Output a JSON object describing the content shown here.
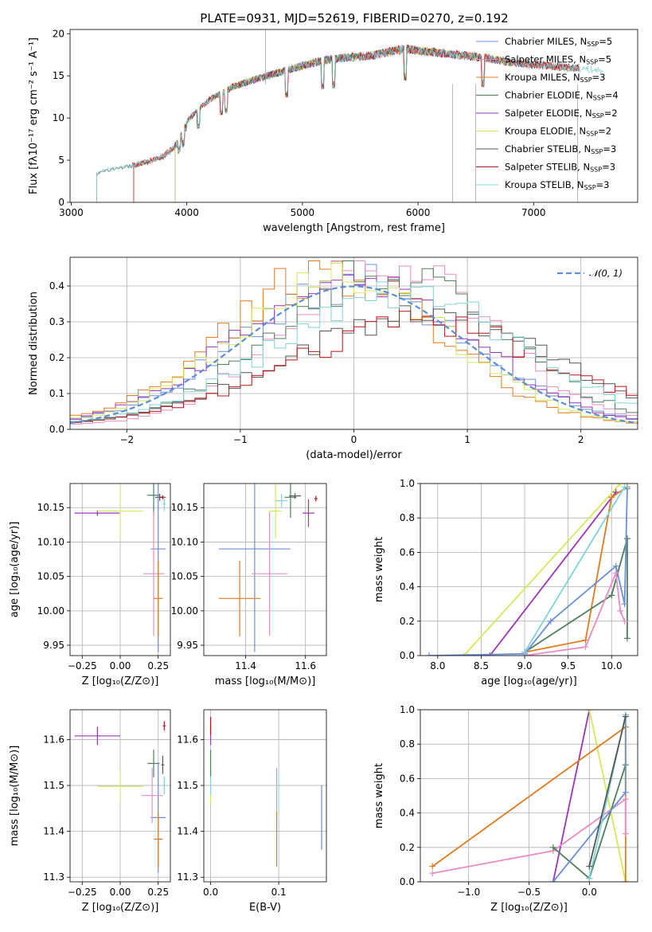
{
  "figure_title": "PLATE=0931, MJD=52619, FIBERID=0270, z=0.192",
  "colors": {
    "chabrier_miles": "#6a8fd8",
    "salpeter_miles": "#e98bc4",
    "kroupa_miles": "#e07b20",
    "chabrier_elodie": "#4f7f5a",
    "salpeter_elodie": "#9a35b5",
    "kroupa_elodie": "#d4e85a",
    "chabrier_stelib": "#555555",
    "salpeter_stelib": "#b81515",
    "kroupa_stelib": "#7fd3d8",
    "normal": "#5b8ed6"
  },
  "chart_data": [
    {
      "id": "spectrum",
      "type": "line",
      "xlabel": "wavelength [Angstrom, rest frame]",
      "ylabel": "Flux [fλ10⁻¹⁷ erg cm⁻² s⁻¹ A⁻¹]",
      "xlim": [
        2990,
        7900
      ],
      "ylim": [
        0,
        20.5
      ],
      "xticks": [
        "3000",
        "4000",
        "5000",
        "6000",
        "7000"
      ],
      "yticks": [
        "0",
        "5",
        "10",
        "15",
        "20"
      ],
      "legend_position": "top-right",
      "series": [
        {
          "name": "Chabrier MILES, N",
          "sub": "SSP",
          "suffix": "=5",
          "color_key": "chabrier_miles",
          "xmin": 3540,
          "xmax": 7400
        },
        {
          "name": "Salpeter MILES, N",
          "sub": "SSP",
          "suffix": "=5",
          "color_key": "salpeter_miles",
          "xmin": 3540,
          "xmax": 7400
        },
        {
          "name": "Kroupa MILES, N",
          "sub": "SSP",
          "suffix": "=3",
          "color_key": "kroupa_miles",
          "xmin": 3540,
          "xmax": 7400
        },
        {
          "name": "Chabrier ELODIE, N",
          "sub": "SSP",
          "suffix": "=4",
          "color_key": "chabrier_elodie",
          "xmin": 3900,
          "xmax": 6800
        },
        {
          "name": "Salpeter ELODIE, N",
          "sub": "SSP",
          "suffix": "=2",
          "color_key": "salpeter_elodie",
          "xmin": 3900,
          "xmax": 6800
        },
        {
          "name": "Kroupa ELODIE, N",
          "sub": "SSP",
          "suffix": "=2",
          "color_key": "kroupa_elodie",
          "xmin": 3900,
          "xmax": 6800
        },
        {
          "name": "Chabrier STELIB, N",
          "sub": "SSP",
          "suffix": "=3",
          "color_key": "chabrier_stelib",
          "xmin": 3220,
          "xmax": 7400
        },
        {
          "name": "Salpeter STELIB, N",
          "sub": "SSP",
          "suffix": "=3",
          "color_key": "salpeter_stelib",
          "xmin": 3540,
          "xmax": 7400
        },
        {
          "name": "Kroupa STELIB, N",
          "sub": "SSP",
          "suffix": "=3",
          "color_key": "kroupa_stelib",
          "xmin": 3220,
          "xmax": 7600
        }
      ],
      "continuum": {
        "x": [
          3220,
          3300,
          3500,
          3700,
          3800,
          3900,
          3950,
          4000,
          4100,
          4200,
          4400,
          4600,
          4800,
          5000,
          5200,
          5400,
          5600,
          5800,
          5900,
          6000,
          6200,
          6400,
          6600,
          6800,
          7000,
          7200,
          7400,
          7600
        ],
        "y": [
          3.6,
          4.0,
          4.5,
          5.2,
          5.8,
          7.0,
          8.5,
          9.6,
          11.0,
          12.2,
          13.7,
          14.6,
          15.4,
          16.2,
          16.9,
          17.2,
          17.4,
          18.0,
          18.2,
          18.0,
          17.7,
          17.4,
          17.1,
          16.6,
          16.3,
          16.1,
          15.9,
          15.6
        ]
      }
    },
    {
      "id": "residuals",
      "type": "area",
      "xlabel": "(data-model)/error",
      "ylabel": "Normed distribution",
      "xlim": [
        -2.5,
        2.5
      ],
      "ylim": [
        0,
        0.48
      ],
      "xticks": [
        "−2",
        "−1",
        "0",
        "1",
        "2"
      ],
      "yticks": [
        "0.0",
        "0.1",
        "0.2",
        "0.3",
        "0.4"
      ],
      "legend_position": "top-right",
      "legend_label": "𝒩(0, 1)",
      "bin_width": 0.1,
      "bin_start": -2.5,
      "histograms": [
        {
          "color_key": "chabrier_miles",
          "center": 0.0,
          "sigma": 1.0,
          "scale": 1.0
        },
        {
          "color_key": "kroupa_miles",
          "center": -0.2,
          "sigma": 0.95,
          "scale": 1.02
        },
        {
          "color_key": "salpeter_miles",
          "center": 0.3,
          "sigma": 0.9,
          "scale": 1.05
        },
        {
          "color_key": "chabrier_elodie",
          "center": 0.3,
          "sigma": 1.0,
          "scale": 1.08
        },
        {
          "color_key": "salpeter_elodie",
          "center": 0.0,
          "sigma": 1.0,
          "scale": 1.05
        },
        {
          "color_key": "kroupa_elodie",
          "center": -0.1,
          "sigma": 0.95,
          "scale": 1.0
        },
        {
          "color_key": "chabrier_stelib",
          "center": 0.6,
          "sigma": 1.2,
          "scale": 0.9
        },
        {
          "color_key": "salpeter_stelib",
          "center": 0.6,
          "sigma": 1.2,
          "scale": 0.85
        },
        {
          "color_key": "kroupa_stelib",
          "center": 0.4,
          "sigma": 1.1,
          "scale": 1.0
        }
      ],
      "normal": {
        "mean": 0,
        "sigma": 1,
        "color_key": "normal"
      }
    },
    {
      "id": "age-vs-Z",
      "type": "scatter",
      "xlabel": "Z [log₁₀(Z/Z⊙)]",
      "ylabel": "age  [log₁₀(age/yr)]",
      "xlim": [
        -0.33,
        0.33
      ],
      "ylim": [
        9.935,
        10.185
      ],
      "xticks": [
        -0.25,
        0.0,
        0.25
      ],
      "xticklabels": [
        "−0.25",
        "0.00",
        "0.25"
      ],
      "yticks": [
        9.95,
        10.0,
        10.05,
        10.1,
        10.15
      ],
      "yticklabels": [
        "9.95",
        "10.00",
        "10.05",
        "10.10",
        "10.15"
      ],
      "points": [
        {
          "color_key": "salpeter_elodie",
          "x": -0.15,
          "xerr": 0.15,
          "y": 10.142,
          "yerr": 0.004
        },
        {
          "color_key": "kroupa_elodie",
          "x": 0.0,
          "xerr": 0.15,
          "y": 10.145,
          "yerr": 0.04
        },
        {
          "color_key": "chabrier_elodie",
          "x": 0.22,
          "xerr": 0.04,
          "y": 10.168,
          "yerr": 0.03
        },
        {
          "color_key": "chabrier_stelib",
          "x": 0.26,
          "xerr": 0.03,
          "y": 10.165,
          "yerr": 0.005
        },
        {
          "color_key": "salpeter_stelib",
          "x": 0.28,
          "xerr": 0.02,
          "y": 10.165,
          "yerr": 0.003
        },
        {
          "color_key": "kroupa_stelib",
          "x": 0.29,
          "xerr": 0.01,
          "y": 10.155,
          "yerr": 0.01
        },
        {
          "color_key": "chabrier_miles",
          "x": 0.25,
          "xerr": 0.05,
          "y": 10.09,
          "yerr": 0.15
        },
        {
          "color_key": "salpeter_miles",
          "x": 0.22,
          "xerr": 0.07,
          "y": 10.054,
          "yerr": 0.09
        },
        {
          "color_key": "kroupa_miles",
          "x": 0.25,
          "xerr": 0.03,
          "y": 10.018,
          "yerr": 0.055
        }
      ]
    },
    {
      "id": "age-vs-mass",
      "type": "scatter",
      "xlabel": "mass [log₁₀(M/M⊙)]",
      "ylabel": "",
      "xlim": [
        11.26,
        11.67
      ],
      "ylim": [
        9.935,
        10.185
      ],
      "xticks": [
        11.4,
        11.6
      ],
      "xticklabels": [
        "11.4",
        "11.6"
      ],
      "yticks": [
        9.95,
        10.0,
        10.05,
        10.1,
        10.15
      ],
      "yticklabels": [
        "9.95",
        "10.00",
        "10.05",
        "10.10",
        "10.15"
      ],
      "points": [
        {
          "color_key": "salpeter_elodie",
          "x": 11.61,
          "xerr": 0.02,
          "y": 10.142,
          "yerr": 0.02
        },
        {
          "color_key": "kroupa_elodie",
          "x": 11.5,
          "xerr": 0.02,
          "y": 10.145,
          "yerr": 0.04
        },
        {
          "color_key": "chabrier_elodie",
          "x": 11.55,
          "xerr": 0.02,
          "y": 10.165,
          "yerr": 0.03
        },
        {
          "color_key": "chabrier_stelib",
          "x": 11.565,
          "xerr": 0.02,
          "y": 10.167,
          "yerr": 0.004
        },
        {
          "color_key": "salpeter_stelib",
          "x": 11.635,
          "xerr": 0.005,
          "y": 10.163,
          "yerr": 0.004
        },
        {
          "color_key": "kroupa_stelib",
          "x": 11.52,
          "xerr": 0.02,
          "y": 10.16,
          "yerr": 0.01
        },
        {
          "color_key": "chabrier_miles",
          "x": 11.43,
          "xerr": 0.12,
          "y": 10.09,
          "yerr": 0.15
        },
        {
          "color_key": "salpeter_miles",
          "x": 11.48,
          "xerr": 0.06,
          "y": 10.054,
          "yerr": 0.09
        },
        {
          "color_key": "kroupa_miles",
          "x": 11.38,
          "xerr": 0.07,
          "y": 10.018,
          "yerr": 0.055
        }
      ]
    },
    {
      "id": "weight-vs-age",
      "type": "line",
      "xlabel": "age  [log₁₀(age/yr)]",
      "ylabel": "mass weight",
      "xlim": [
        7.8,
        10.3
      ],
      "ylim": [
        0,
        1
      ],
      "xticks": [
        8.0,
        8.5,
        9.0,
        9.5,
        10.0
      ],
      "xticklabels": [
        "8.0",
        "8.5",
        "9.0",
        "9.5",
        "10.0"
      ],
      "yticks": [
        0,
        0.2,
        0.4,
        0.6,
        0.8,
        1.0
      ],
      "yticklabels": [
        "0.0",
        "0.2",
        "0.4",
        "0.6",
        "0.8",
        "1.0"
      ],
      "series": [
        {
          "color_key": "kroupa_elodie",
          "x": [
            8.3,
            10.1
          ],
          "y": [
            0.0,
            1.0
          ]
        },
        {
          "color_key": "salpeter_elodie",
          "x": [
            8.6,
            10.05
          ],
          "y": [
            0.0,
            0.95
          ]
        },
        {
          "color_key": "kroupa_miles",
          "x": [
            9.0,
            9.7,
            10.0,
            10.18
          ],
          "y": [
            0.02,
            0.09,
            0.92,
            0.98
          ]
        },
        {
          "color_key": "chabrier_elodie",
          "x": [
            9.0,
            10.0,
            10.18,
            10.18
          ],
          "y": [
            0.02,
            0.35,
            0.68,
            0.1
          ]
        },
        {
          "color_key": "chabrier_miles",
          "x": [
            7.9,
            9.0,
            9.3,
            10.05,
            10.15,
            10.18
          ],
          "y": [
            0.0,
            0.01,
            0.2,
            0.52,
            0.3,
            0.97
          ]
        },
        {
          "color_key": "salpeter_miles",
          "x": [
            9.0,
            9.7,
            10.05,
            10.1,
            10.15
          ],
          "y": [
            0.0,
            0.05,
            0.48,
            0.26,
            0.2
          ]
        },
        {
          "color_key": "kroupa_stelib",
          "x": [
            9.0,
            10.15
          ],
          "y": [
            0.02,
            0.98
          ]
        }
      ]
    },
    {
      "id": "mass-vs-Z",
      "type": "scatter",
      "xlabel": "Z [log₁₀(Z/Z⊙)]",
      "ylabel": "mass [log₁₀(M/M⊙)]",
      "xlim": [
        -0.33,
        0.33
      ],
      "ylim": [
        11.29,
        11.665
      ],
      "xticks": [
        -0.25,
        0.0,
        0.25
      ],
      "xticklabels": [
        "−0.25",
        "0.00",
        "0.25"
      ],
      "yticks": [
        11.3,
        11.4,
        11.5,
        11.6
      ],
      "yticklabels": [
        "11.3",
        "11.4",
        "11.5",
        "11.6"
      ],
      "points": [
        {
          "color_key": "salpeter_elodie",
          "x": -0.15,
          "xerr": 0.15,
          "y": 11.608,
          "yerr": 0.02
        },
        {
          "color_key": "kroupa_elodie",
          "x": 0.0,
          "xerr": 0.15,
          "y": 11.498,
          "yerr": 0.035
        },
        {
          "color_key": "chabrier_elodie",
          "x": 0.22,
          "xerr": 0.04,
          "y": 11.548,
          "yerr": 0.03
        },
        {
          "color_key": "chabrier_stelib",
          "x": 0.28,
          "xerr": 0.01,
          "y": 11.545,
          "yerr": 0.02
        },
        {
          "color_key": "salpeter_stelib",
          "x": 0.29,
          "xerr": 0.01,
          "y": 11.63,
          "yerr": 0.01
        },
        {
          "color_key": "kroupa_stelib",
          "x": 0.29,
          "xerr": 0.01,
          "y": 11.5,
          "yerr": 0.02
        },
        {
          "color_key": "chabrier_miles",
          "x": 0.25,
          "xerr": 0.05,
          "y": 11.43,
          "yerr": 0.12
        },
        {
          "color_key": "salpeter_miles",
          "x": 0.21,
          "xerr": 0.07,
          "y": 11.478,
          "yerr": 0.06
        },
        {
          "color_key": "kroupa_miles",
          "x": 0.25,
          "xerr": 0.03,
          "y": 11.383,
          "yerr": 0.06
        }
      ]
    },
    {
      "id": "mass-vs-EBV",
      "type": "scatter",
      "xlabel": "E(B-V)",
      "ylabel": "",
      "xlim": [
        -0.01,
        0.17
      ],
      "ylim": [
        11.29,
        11.665
      ],
      "xticks": [
        0.0,
        0.1
      ],
      "xticklabels": [
        "0.0",
        "0.1"
      ],
      "yticks": [
        11.3,
        11.4,
        11.5,
        11.6
      ],
      "yticklabels": [
        "11.3",
        "11.4",
        "11.5",
        "11.6"
      ],
      "points": [
        {
          "color_key": "salpeter_elodie",
          "x": 0.0,
          "xerr": 0.0,
          "y": 11.608,
          "yerr": 0.02
        },
        {
          "color_key": "kroupa_elodie",
          "x": 0.0,
          "xerr": 0.0,
          "y": 11.495,
          "yerr": 0.035
        },
        {
          "color_key": "chabrier_elodie",
          "x": 0.0,
          "xerr": 0.0,
          "y": 11.548,
          "yerr": 0.03
        },
        {
          "color_key": "salpeter_stelib",
          "x": 0.0,
          "xerr": 0.0,
          "y": 11.63,
          "yerr": 0.02
        },
        {
          "color_key": "kroupa_stelib",
          "x": 0.0,
          "xerr": 0.0,
          "y": 11.5,
          "yerr": 0.02
        },
        {
          "color_key": "salpeter_miles",
          "x": 0.097,
          "xerr": 0.0,
          "y": 11.478,
          "yerr": 0.06
        },
        {
          "color_key": "kroupa_miles",
          "x": 0.097,
          "xerr": 0.0,
          "y": 11.383,
          "yerr": 0.06
        },
        {
          "color_key": "chabrier_miles",
          "x": 0.163,
          "xerr": 0.0,
          "y": 11.43,
          "yerr": 0.07
        }
      ]
    },
    {
      "id": "weight-vs-Z",
      "type": "line",
      "xlabel": "Z [log₁₀(Z/Z⊙)]",
      "ylabel": "mass weight",
      "xlim": [
        -1.4,
        0.4
      ],
      "ylim": [
        0,
        1
      ],
      "xticks": [
        -1.0,
        -0.5,
        0.0
      ],
      "xticklabels": [
        "−1.0",
        "−0.5",
        "0.0"
      ],
      "yticks": [
        0,
        0.2,
        0.4,
        0.6,
        0.8,
        1.0
      ],
      "yticklabels": [
        "0.0",
        "0.2",
        "0.4",
        "0.6",
        "0.8",
        "1.0"
      ],
      "series": [
        {
          "color_key": "salpeter_elodie",
          "x": [
            -0.3,
            0.0
          ],
          "y": [
            0.0,
            1.0
          ]
        },
        {
          "color_key": "kroupa_elodie",
          "x": [
            0.0,
            0.3
          ],
          "y": [
            1.0,
            0.0
          ]
        },
        {
          "color_key": "kroupa_miles",
          "x": [
            -1.3,
            0.3,
            0.3
          ],
          "y": [
            0.09,
            0.9,
            0.0
          ]
        },
        {
          "color_key": "salpeter_miles",
          "x": [
            -1.3,
            -0.3,
            0.3,
            0.3
          ],
          "y": [
            0.05,
            0.18,
            0.48,
            0.28
          ]
        },
        {
          "color_key": "chabrier_elodie",
          "x": [
            -0.3,
            0.0,
            0.3
          ],
          "y": [
            0.2,
            0.02,
            0.68
          ]
        },
        {
          "color_key": "chabrier_miles",
          "x": [
            -0.3,
            0.3,
            0.3
          ],
          "y": [
            0.0,
            0.52,
            0.97
          ]
        },
        {
          "color_key": "kroupa_stelib",
          "x": [
            0.0,
            0.3
          ],
          "y": [
            0.02,
            0.97
          ]
        },
        {
          "color_key": "chabrier_stelib",
          "x": [
            0.0,
            0.3
          ],
          "y": [
            0.09,
            0.96
          ]
        }
      ]
    }
  ]
}
